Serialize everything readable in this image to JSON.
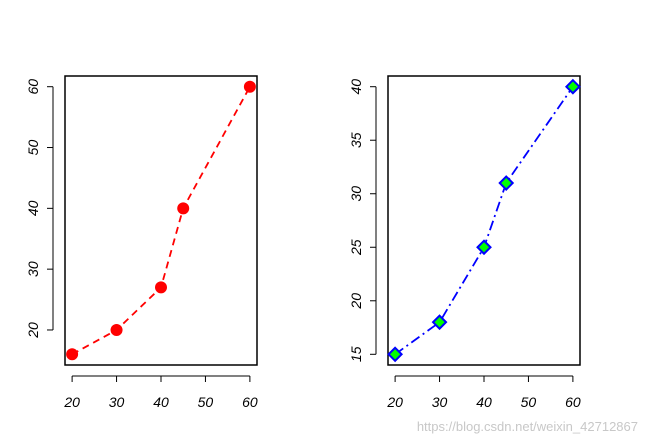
{
  "watermark": "https://blog.csdn.net/weixin_42712867",
  "chart_data": [
    {
      "type": "line",
      "x": [
        20,
        30,
        40,
        45,
        60
      ],
      "y": [
        16,
        20,
        27,
        40,
        60
      ],
      "xticks": [
        20,
        30,
        40,
        50,
        60
      ],
      "yticks": [
        20,
        30,
        40,
        50,
        60
      ],
      "xlim": [
        18.4,
        61.6
      ],
      "ylim": [
        14.24,
        61.76
      ],
      "line_style": "dashed",
      "line_color": "#ff0000",
      "marker": "circle",
      "marker_fill": "#ff0000",
      "marker_stroke": "#ff0000",
      "grid": false
    },
    {
      "type": "line",
      "x": [
        20,
        30,
        40,
        45,
        60
      ],
      "y": [
        15,
        18,
        25,
        31,
        40
      ],
      "xticks": [
        20,
        30,
        40,
        50,
        60
      ],
      "yticks": [
        15,
        20,
        25,
        30,
        35,
        40
      ],
      "xlim": [
        18.4,
        61.6
      ],
      "ylim": [
        14.0,
        41.0
      ],
      "line_style": "dashdot",
      "line_color": "#0000ff",
      "marker": "diamond",
      "marker_fill": "#00ff00",
      "marker_stroke": "#0000ff",
      "grid": false
    }
  ]
}
